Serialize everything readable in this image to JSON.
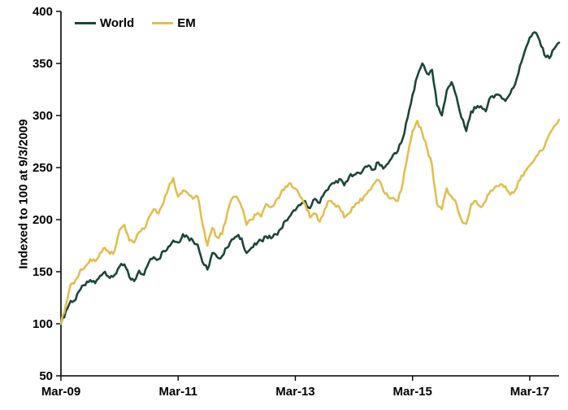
{
  "chart_data": {
    "type": "line",
    "title": "",
    "xlabel": "",
    "ylabel": "Indexed to 100 at 9/3/2009",
    "ylim": [
      50,
      400
    ],
    "ytick_step": 50,
    "grid": false,
    "legend_position": "top-left",
    "x_unit": "monthly from Mar-09 to Sep-17",
    "x_tick_labels": [
      "Mar-09",
      "Mar-11",
      "Mar-13",
      "Mar-15",
      "Mar-17"
    ],
    "x_tick_indices": [
      0,
      24,
      48,
      72,
      96
    ],
    "axis_color": "#000000",
    "noise_amplitude": 2.2,
    "series": [
      {
        "name": "World",
        "color": "#1c463b",
        "values": [
          100,
          112,
          122,
          123,
          133,
          137,
          142,
          139,
          146,
          150,
          144,
          147,
          155,
          157,
          145,
          141,
          151,
          147,
          159,
          164,
          162,
          170,
          174,
          180,
          178,
          186,
          183,
          180,
          176,
          159,
          152,
          168,
          164,
          165,
          173,
          181,
          184,
          182,
          168,
          173,
          176,
          180,
          184,
          182,
          186,
          191,
          199,
          204,
          209,
          214,
          218,
          211,
          220,
          216,
          226,
          232,
          235,
          239,
          233,
          241,
          243,
          245,
          249,
          252,
          248,
          255,
          249,
          254,
          262,
          266,
          278,
          298,
          320,
          338,
          350,
          340,
          344,
          310,
          300,
          324,
          332,
          318,
          298,
          285,
          304,
          307,
          309,
          304,
          318,
          320,
          319,
          314,
          321,
          330,
          348,
          362,
          375,
          380,
          372,
          358,
          355,
          364,
          370
        ]
      },
      {
        "name": "EM",
        "color": "#e1bf50",
        "values": [
          100,
          118,
          138,
          142,
          152,
          155,
          162,
          160,
          168,
          173,
          167,
          170,
          190,
          195,
          180,
          178,
          188,
          191,
          202,
          210,
          206,
          216,
          230,
          240,
          222,
          228,
          225,
          220,
          222,
          195,
          175,
          192,
          183,
          186,
          205,
          220,
          222,
          212,
          195,
          200,
          205,
          203,
          215,
          212,
          218,
          225,
          232,
          235,
          230,
          222,
          215,
          202,
          206,
          198,
          210,
          218,
          215,
          212,
          202,
          206,
          212,
          216,
          222,
          228,
          234,
          238,
          228,
          222,
          221,
          218,
          235,
          262,
          285,
          295,
          283,
          268,
          252,
          215,
          210,
          230,
          222,
          215,
          200,
          196,
          215,
          218,
          212,
          218,
          228,
          232,
          234,
          232,
          224,
          228,
          238,
          246,
          252,
          258,
          266,
          270,
          282,
          290,
          296
        ]
      }
    ]
  }
}
